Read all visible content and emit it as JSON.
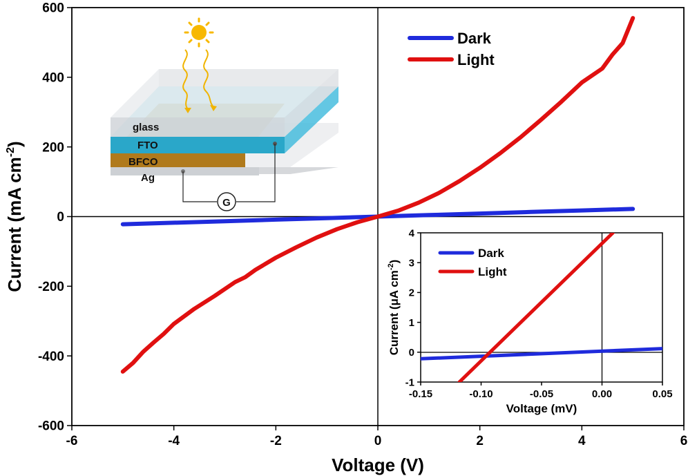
{
  "chart_data": [
    {
      "type": "line",
      "xlabel": "Voltage (V)",
      "ylabel": "Current (mA cm",
      "ylabel_sup": "-2",
      "ylabel_close": ")",
      "xlim": [
        -6,
        6
      ],
      "ylim": [
        -600,
        600
      ],
      "x_ticks": [
        "-6",
        "-4",
        "-2",
        "0",
        "2",
        "4",
        "6"
      ],
      "y_ticks": [
        "-600",
        "-400",
        "-200",
        "0",
        "200",
        "400",
        "600"
      ],
      "legend_position": "top-right",
      "grid": false,
      "series": [
        {
          "name": "Dark",
          "color": "#1f2bdc",
          "points": [
            [
              -5,
              -22
            ],
            [
              -4,
              -17.6
            ],
            [
              -3,
              -13.2
            ],
            [
              -2,
              -8.8
            ],
            [
              -1,
              -4.4
            ],
            [
              0,
              0
            ],
            [
              1,
              4.4
            ],
            [
              2,
              8.8
            ],
            [
              3,
              13.2
            ],
            [
              4,
              17.6
            ],
            [
              5,
              22
            ]
          ]
        },
        {
          "name": "Light",
          "color": "#e01010",
          "points": [
            [
              -5,
              -445
            ],
            [
              -4.8,
              -420
            ],
            [
              -4.6,
              -388
            ],
            [
              -4.4,
              -362
            ],
            [
              -4.2,
              -337
            ],
            [
              -4,
              -308
            ],
            [
              -3.6,
              -265
            ],
            [
              -3.2,
              -228
            ],
            [
              -2.8,
              -188
            ],
            [
              -2.6,
              -174
            ],
            [
              -2.4,
              -153
            ],
            [
              -2.0,
              -118
            ],
            [
              -1.6,
              -88
            ],
            [
              -1.2,
              -60
            ],
            [
              -0.8,
              -36
            ],
            [
              -0.4,
              -16
            ],
            [
              0,
              0
            ],
            [
              0.4,
              17
            ],
            [
              0.8,
              40
            ],
            [
              1.2,
              68
            ],
            [
              1.6,
              102
            ],
            [
              2.0,
              140
            ],
            [
              2.4,
              182
            ],
            [
              2.8,
              228
            ],
            [
              3.2,
              278
            ],
            [
              3.6,
              330
            ],
            [
              4.0,
              385
            ],
            [
              4.4,
              425
            ],
            [
              4.6,
              465
            ],
            [
              4.8,
              498
            ],
            [
              5.0,
              570
            ]
          ]
        }
      ]
    },
    {
      "type": "line",
      "xlabel": "Voltage (mV)",
      "ylabel": "Current (μA cm",
      "ylabel_sup": "-2",
      "ylabel_close": ")",
      "xlim": [
        -0.15,
        0.05
      ],
      "ylim": [
        -1,
        4
      ],
      "x_ticks": [
        "-0.15",
        "-0.10",
        "-0.05",
        "0.00",
        "0.05"
      ],
      "y_ticks": [
        "-1",
        "0",
        "1",
        "2",
        "3",
        "4"
      ],
      "legend_position": "top-left",
      "grid": false,
      "series": [
        {
          "name": "Dark",
          "color": "#1f2bdc",
          "points": [
            [
              -0.15,
              -0.22
            ],
            [
              0.05,
              0.12
            ]
          ]
        },
        {
          "name": "Light",
          "color": "#e01010",
          "points": [
            [
              -0.118,
              -1.0
            ],
            [
              0.009,
              4.0
            ]
          ]
        }
      ]
    }
  ],
  "schematic": {
    "layers": [
      "glass",
      "FTO",
      "BFCO",
      "Ag"
    ],
    "meter_label": "G",
    "colors": {
      "glass": "#d4d7db",
      "fto": "#2aa7c9",
      "bfco": "#b07a1c",
      "ag": "#cfd2d6",
      "sun": "#f7b800",
      "ray": "#f0b400"
    }
  }
}
